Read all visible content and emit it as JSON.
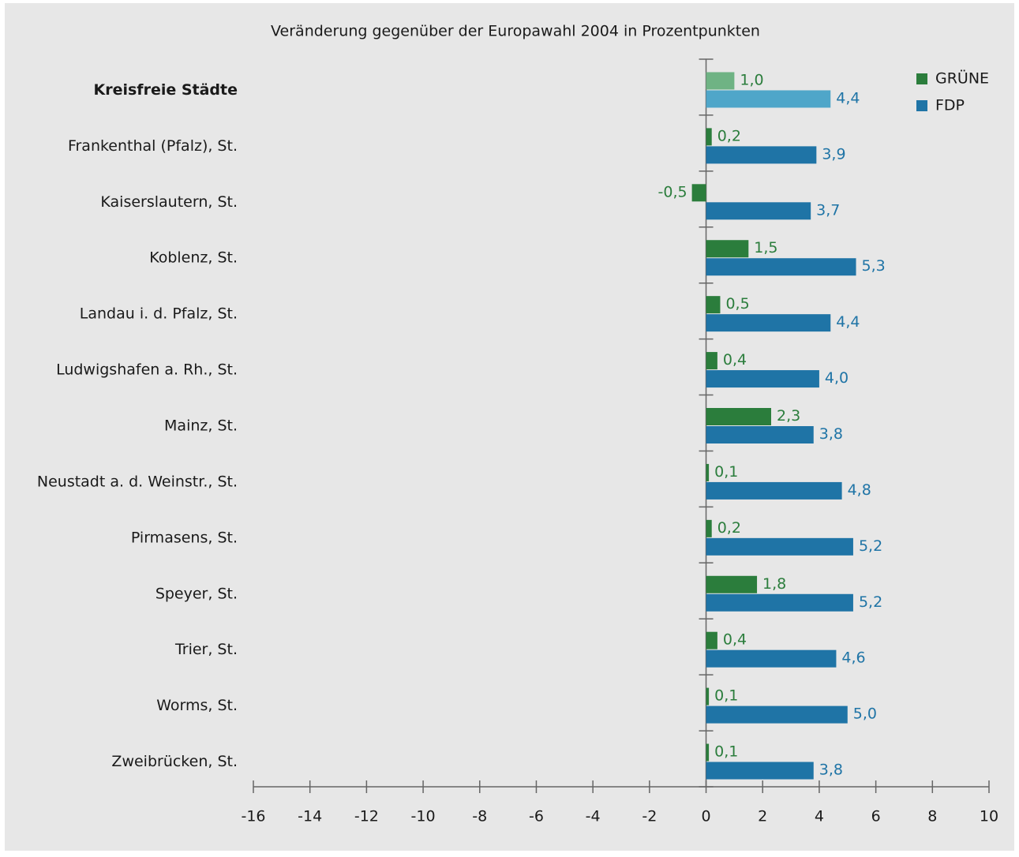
{
  "chart_data": {
    "type": "barh",
    "title": "Veränderung gegenüber der Europawahl 2004 in Prozentpunkten",
    "categories": [
      "Kreisfreie Städte",
      "Frankenthal (Pfalz), St.",
      "Kaiserslautern, St.",
      "Koblenz, St.",
      "Landau i. d. Pfalz, St.",
      "Ludwigshafen a. Rh., St.",
      "Mainz, St.",
      "Neustadt a. d. Weinstr., St.",
      "Pirmasens, St.",
      "Speyer, St.",
      "Trier, St.",
      "Worms, St.",
      "Zweibrücken, St."
    ],
    "bold_categories": [
      0
    ],
    "series": [
      {
        "name": "GRÜNE",
        "color": "#2b7d3c",
        "first_color": "#6fb384",
        "values": [
          1.0,
          0.2,
          -0.5,
          1.5,
          0.5,
          0.4,
          2.3,
          0.1,
          0.2,
          1.8,
          0.4,
          0.1,
          0.1
        ],
        "value_labels": [
          "1,0",
          "0,2",
          "-0,5",
          "1,5",
          "0,5",
          "0,4",
          "2,3",
          "0,1",
          "0,2",
          "1,8",
          "0,4",
          "0,1",
          "0,1"
        ]
      },
      {
        "name": "FDP",
        "color": "#1f74a6",
        "first_color": "#4fa6c9",
        "values": [
          4.4,
          3.9,
          3.7,
          5.3,
          4.4,
          4.0,
          3.8,
          4.8,
          5.2,
          5.2,
          4.6,
          5.0,
          3.8
        ],
        "value_labels": [
          "4,4",
          "3,9",
          "3,7",
          "5,3",
          "4,4",
          "4,0",
          "3,8",
          "4,8",
          "5,2",
          "5,2",
          "4,6",
          "5,0",
          "3,8"
        ]
      }
    ],
    "xlim": [
      -16,
      10
    ],
    "xticks": [
      -16,
      -14,
      -12,
      -10,
      -8,
      -6,
      -4,
      -2,
      0,
      2,
      4,
      6,
      8,
      10
    ],
    "legend": "upper right"
  }
}
